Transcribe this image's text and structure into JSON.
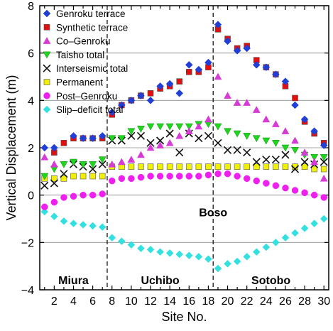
{
  "chart_data": {
    "type": "scatter",
    "xlabel": "Site No.",
    "ylabel": "Vertical Displacement (m)",
    "xlim": [
      0.5,
      30.5
    ],
    "ylim": [
      -4,
      8
    ],
    "xticks": [
      2,
      4,
      6,
      8,
      10,
      12,
      14,
      16,
      18,
      20,
      22,
      24,
      26,
      28,
      30
    ],
    "yticks": [
      -4,
      -2,
      0,
      2,
      4,
      6,
      8
    ],
    "grid": "horizontal",
    "legend_position": "top-left",
    "dividers": [
      7.5,
      18.5
    ],
    "region_labels": [
      {
        "text": "Miura",
        "x": 4
      },
      {
        "text": "Uchibo",
        "x": 13
      },
      {
        "text": "Sotobo",
        "x": 24.5
      }
    ],
    "boso_label": {
      "text": "Boso",
      "x": 18.5,
      "y": -0.9
    },
    "x": [
      1,
      2,
      3,
      4,
      5,
      6,
      7,
      8,
      9,
      10,
      11,
      12,
      13,
      14,
      15,
      16,
      17,
      18,
      19,
      20,
      21,
      22,
      23,
      24,
      25,
      26,
      27,
      28,
      29,
      30
    ],
    "series": [
      {
        "name": "Genroku terrace",
        "marker": "diamond",
        "color": "#1f3fd6",
        "values": [
          2.0,
          2.0,
          null,
          2.5,
          2.4,
          2.4,
          2.5,
          3.5,
          3.8,
          4.0,
          4.2,
          4.0,
          4.6,
          4.7,
          4.3,
          5.5,
          5.3,
          5.6,
          7.2,
          6.5,
          6.1,
          6.2,
          5.5,
          5.4,
          5.1,
          4.8,
          3.8,
          3.2,
          2.7,
          2.1
        ]
      },
      {
        "name": "Synthetic terrace",
        "marker": "square",
        "color": "#e01010",
        "values": [
          null,
          1.8,
          2.2,
          2.4,
          2.4,
          2.4,
          2.4,
          3.4,
          3.8,
          4.0,
          4.2,
          4.3,
          4.5,
          4.6,
          4.8,
          5.2,
          5.2,
          5.4,
          7.0,
          6.6,
          6.2,
          6.3,
          5.7,
          5.4,
          5.1,
          4.6,
          4.1,
          3.1,
          2.6,
          2.2
        ]
      },
      {
        "name": "Co–Genroku",
        "marker": "triangle-up",
        "color": "#d63bd6",
        "values": [
          1.6,
          1.3,
          null,
          null,
          null,
          null,
          null,
          1.3,
          1.4,
          1.5,
          1.7,
          2.0,
          2.1,
          2.2,
          2.5,
          2.7,
          2.9,
          3.2,
          5.0,
          4.2,
          3.9,
          3.9,
          3.6,
          3.2,
          3.0,
          2.7,
          2.3,
          1.8,
          1.4,
          0.7
        ]
      },
      {
        "name": "Taisho total",
        "marker": "triangle-down",
        "color": "#1fd61f",
        "values": [
          0.8,
          1.1,
          1.3,
          1.4,
          1.3,
          1.3,
          1.5,
          2.4,
          2.4,
          2.7,
          2.8,
          2.9,
          2.9,
          2.9,
          2.9,
          2.9,
          3.0,
          3.0,
          2.9,
          2.7,
          2.6,
          2.5,
          2.4,
          2.3,
          2.2,
          2.0,
          1.9,
          1.7,
          1.6,
          1.6
        ]
      },
      {
        "name": "Interseismic total",
        "marker": "x",
        "color": "#111111",
        "values": [
          0.4,
          0.5,
          0.9,
          1.3,
          1.2,
          1.1,
          1.3,
          2.3,
          2.3,
          2.5,
          2.5,
          2.2,
          2.3,
          2.6,
          1.8,
          2.6,
          2.4,
          2.5,
          2.2,
          1.9,
          1.9,
          1.8,
          1.4,
          1.5,
          1.5,
          1.7,
          1.1,
          1.4,
          1.3,
          1.4
        ]
      },
      {
        "name": "Permanent",
        "marker": "square",
        "color": "#f0f000",
        "values": [
          0.7,
          0.7,
          0.7,
          0.8,
          0.8,
          0.8,
          0.8,
          1.2,
          1.2,
          1.2,
          1.2,
          1.2,
          1.2,
          1.2,
          1.2,
          1.2,
          1.2,
          1.2,
          1.2,
          1.2,
          1.2,
          1.2,
          1.2,
          1.2,
          1.2,
          1.2,
          1.2,
          1.2,
          1.1,
          1.1
        ]
      },
      {
        "name": "Post–Genroku",
        "marker": "circle",
        "color": "#ef20ef",
        "values": [
          -0.5,
          -0.3,
          -0.1,
          -0.05,
          0.0,
          0.0,
          0.05,
          0.6,
          0.7,
          0.7,
          0.75,
          0.8,
          0.8,
          0.8,
          0.8,
          0.8,
          0.8,
          0.85,
          0.9,
          0.9,
          0.8,
          0.7,
          0.6,
          0.5,
          0.4,
          0.3,
          0.2,
          0.1,
          0.0,
          -0.1
        ]
      },
      {
        "name": "Slip–deficit total",
        "marker": "diamond",
        "color": "#33e0e0",
        "values": [
          -0.7,
          -0.9,
          -1.1,
          -1.2,
          -1.25,
          -1.3,
          -1.35,
          -1.8,
          -1.95,
          -2.1,
          -2.25,
          -2.3,
          -2.4,
          -2.45,
          -2.5,
          -2.55,
          -2.6,
          -2.7,
          -3.1,
          -2.9,
          -2.8,
          -2.6,
          -2.4,
          -2.2,
          -2.0,
          -1.8,
          -1.6,
          -1.4,
          -1.2,
          -1.0
        ]
      }
    ]
  }
}
